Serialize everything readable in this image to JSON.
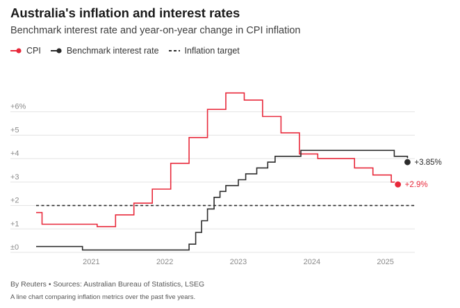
{
  "header": {
    "title": "Australia's inflation and interest rates",
    "subtitle": "Benchmark interest rate and year-on-year change in CPI inflation"
  },
  "legend": {
    "cpi": "CPI",
    "rate": "Benchmark interest rate",
    "target": "Inflation target"
  },
  "footer": {
    "source": "By Reuters • Sources: Australian Bureau of Statistics, LSEG",
    "description": "A line chart comparing inflation metrics over the past five years."
  },
  "colors": {
    "cpi": "#e8283a",
    "rate": "#2b2b2b",
    "target": "#2b2b2b",
    "grid": "#e3e3e3",
    "axis_text": "#8a8a8a"
  },
  "chart_data": {
    "type": "line",
    "title": "Australia's inflation and interest rates",
    "subtitle": "Benchmark interest rate and year-on-year change in CPI inflation",
    "xlabel": "",
    "ylabel": "",
    "xlim": [
      2020.25,
      2025.4
    ],
    "ylim": [
      0,
      7
    ],
    "y_ticks": [
      {
        "value": 0,
        "label": "±0"
      },
      {
        "value": 1,
        "label": "+1"
      },
      {
        "value": 2,
        "label": "+2"
      },
      {
        "value": 3,
        "label": "+3"
      },
      {
        "value": 4,
        "label": "+4"
      },
      {
        "value": 5,
        "label": "+5"
      },
      {
        "value": 6,
        "label": "+6%"
      }
    ],
    "x_ticks": [
      {
        "value": 2021,
        "label": "2021"
      },
      {
        "value": 2022,
        "label": "2022"
      },
      {
        "value": 2023,
        "label": "2023"
      },
      {
        "value": 2024,
        "label": "2024"
      },
      {
        "value": 2025,
        "label": "2025"
      }
    ],
    "grid": true,
    "legend_position": "top-left",
    "series": [
      {
        "name": "CPI",
        "key": "cpi",
        "step": true,
        "x": [
          2020.25,
          2020.33,
          2020.5,
          2020.75,
          2021.0,
          2021.08,
          2021.33,
          2021.58,
          2021.83,
          2022.08,
          2022.33,
          2022.58,
          2022.83,
          2023.08,
          2023.33,
          2023.58,
          2023.83,
          2024.08,
          2024.33,
          2024.58,
          2024.83,
          2025.08,
          2025.17
        ],
        "values": [
          1.7,
          1.2,
          1.2,
          1.2,
          1.2,
          1.1,
          1.6,
          2.1,
          2.7,
          3.8,
          4.9,
          6.1,
          6.8,
          6.5,
          5.8,
          5.1,
          4.2,
          4.0,
          4.0,
          3.6,
          3.3,
          3.0,
          2.9
        ],
        "end_label": "+2.9%"
      },
      {
        "name": "Benchmark interest rate",
        "key": "rate",
        "step": true,
        "x": [
          2020.25,
          2020.75,
          2020.88,
          2021.0,
          2021.5,
          2022.25,
          2022.33,
          2022.42,
          2022.5,
          2022.58,
          2022.67,
          2022.75,
          2022.83,
          2023.0,
          2023.1,
          2023.25,
          2023.4,
          2023.5,
          2023.85,
          2024.0,
          2024.5,
          2024.92,
          2025.12,
          2025.3
        ],
        "values": [
          0.25,
          0.25,
          0.1,
          0.1,
          0.1,
          0.1,
          0.35,
          0.85,
          1.35,
          1.85,
          2.35,
          2.6,
          2.85,
          3.1,
          3.35,
          3.6,
          3.85,
          4.1,
          4.35,
          4.35,
          4.35,
          4.35,
          4.1,
          3.85
        ],
        "end_label": "+3.85%"
      },
      {
        "name": "Inflation target",
        "key": "target",
        "style": "dashed",
        "x": [
          2020.25,
          2025.4
        ],
        "values": [
          2,
          2
        ]
      }
    ]
  }
}
